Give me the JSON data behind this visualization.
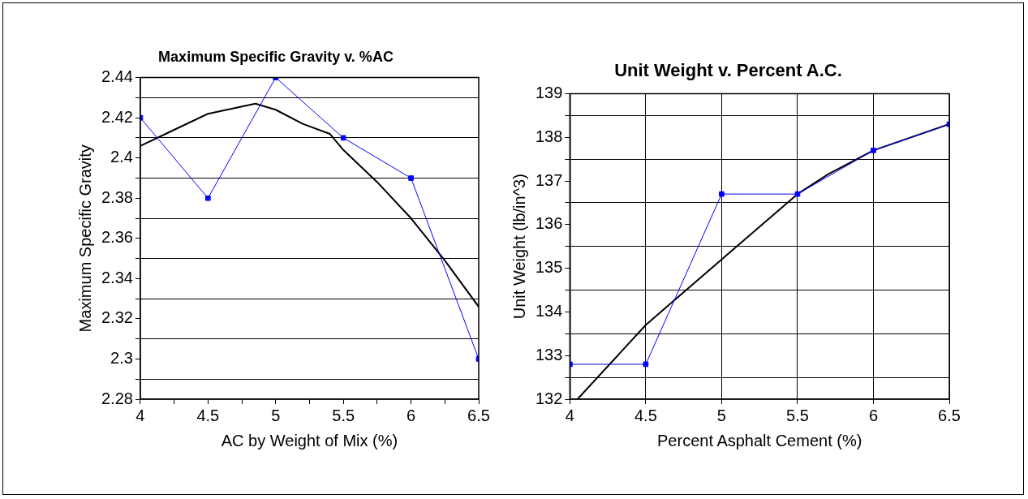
{
  "chart_data": [
    {
      "type": "line",
      "title": "Maximum Specific Gravity v. %AC",
      "xlabel": "AC by Weight of Mix (%)",
      "ylabel": "Maximum Specific Gravity",
      "xlim": [
        4,
        6.5
      ],
      "xticks": [
        4,
        {
          "value": 4.25,
          "label": null
        },
        4.5,
        {
          "value": 4.75,
          "label": null
        },
        5,
        {
          "value": 5.25,
          "label": null
        },
        5.5,
        {
          "value": 5.75,
          "label": null
        },
        6,
        {
          "value": 6.25,
          "label": null
        },
        6.5
      ],
      "ylim": [
        2.28,
        2.44
      ],
      "yticks": [
        2.28,
        {
          "value": 2.29,
          "label": null
        },
        2.3,
        {
          "value": 2.31,
          "label": null
        },
        2.32,
        {
          "value": 2.33,
          "label": null
        },
        2.34,
        {
          "value": 2.35,
          "label": null
        },
        2.36,
        {
          "value": 2.37,
          "label": null
        },
        2.38,
        {
          "value": 2.39,
          "label": null
        },
        2.4,
        {
          "value": 2.41,
          "label": null
        },
        2.42,
        {
          "value": 2.43,
          "label": null
        },
        2.44
      ],
      "grid": "y",
      "legend": false,
      "marker": "square",
      "series": [
        {
          "color": "#0000ff",
          "x": [
            4,
            4.5,
            5,
            5.5,
            6,
            6.5
          ],
          "values": [
            2.42,
            2.38,
            2.44,
            2.41,
            2.39,
            2.3
          ]
        },
        {
          "type": "line",
          "color": "#000000",
          "marker": "none",
          "x": [
            4,
            4.25,
            4.5,
            4.85,
            5,
            5.2,
            5.4,
            5.5,
            5.75,
            6,
            6.25,
            6.5
          ],
          "values": [
            2.406,
            2.414,
            2.422,
            2.427,
            2.424,
            2.417,
            2.412,
            2.404,
            2.388,
            2.37,
            2.349,
            2.326
          ]
        }
      ]
    },
    {
      "type": "line",
      "title": "Unit Weight v. Percent A.C.",
      "xlabel": "Percent Asphalt Cement (%)",
      "ylabel": "Unit Weight (lb/in^3)",
      "xlim": [
        4,
        6.5
      ],
      "xticks": [
        4,
        4.5,
        5,
        5.5,
        6,
        6.5
      ],
      "ylim": [
        132,
        139
      ],
      "yticks": [
        132,
        {
          "value": 132.5,
          "label": null
        },
        133,
        {
          "value": 133.5,
          "label": null
        },
        134,
        {
          "value": 134.5,
          "label": null
        },
        135,
        {
          "value": 135.5,
          "label": null
        },
        136,
        {
          "value": 136.5,
          "label": null
        },
        137,
        {
          "value": 137.5,
          "label": null
        },
        138,
        {
          "value": 138.5,
          "label": null
        },
        139
      ],
      "grid": true,
      "legend": false,
      "marker": "square",
      "series": [
        {
          "color": "#0000ff",
          "x": [
            4,
            4.5,
            5,
            5.5,
            6,
            6.5
          ],
          "values": [
            132.8,
            132.8,
            136.7,
            136.7,
            137.7,
            138.3
          ]
        },
        {
          "type": "line",
          "color": "#000000",
          "marker": "none",
          "x": [
            4.05,
            4.5,
            4.65,
            5,
            5.2,
            5.5,
            5.7,
            6,
            6.5
          ],
          "values": [
            132,
            133.7,
            134.15,
            135.2,
            135.8,
            136.7,
            137.15,
            137.7,
            138.3
          ]
        }
      ]
    }
  ]
}
